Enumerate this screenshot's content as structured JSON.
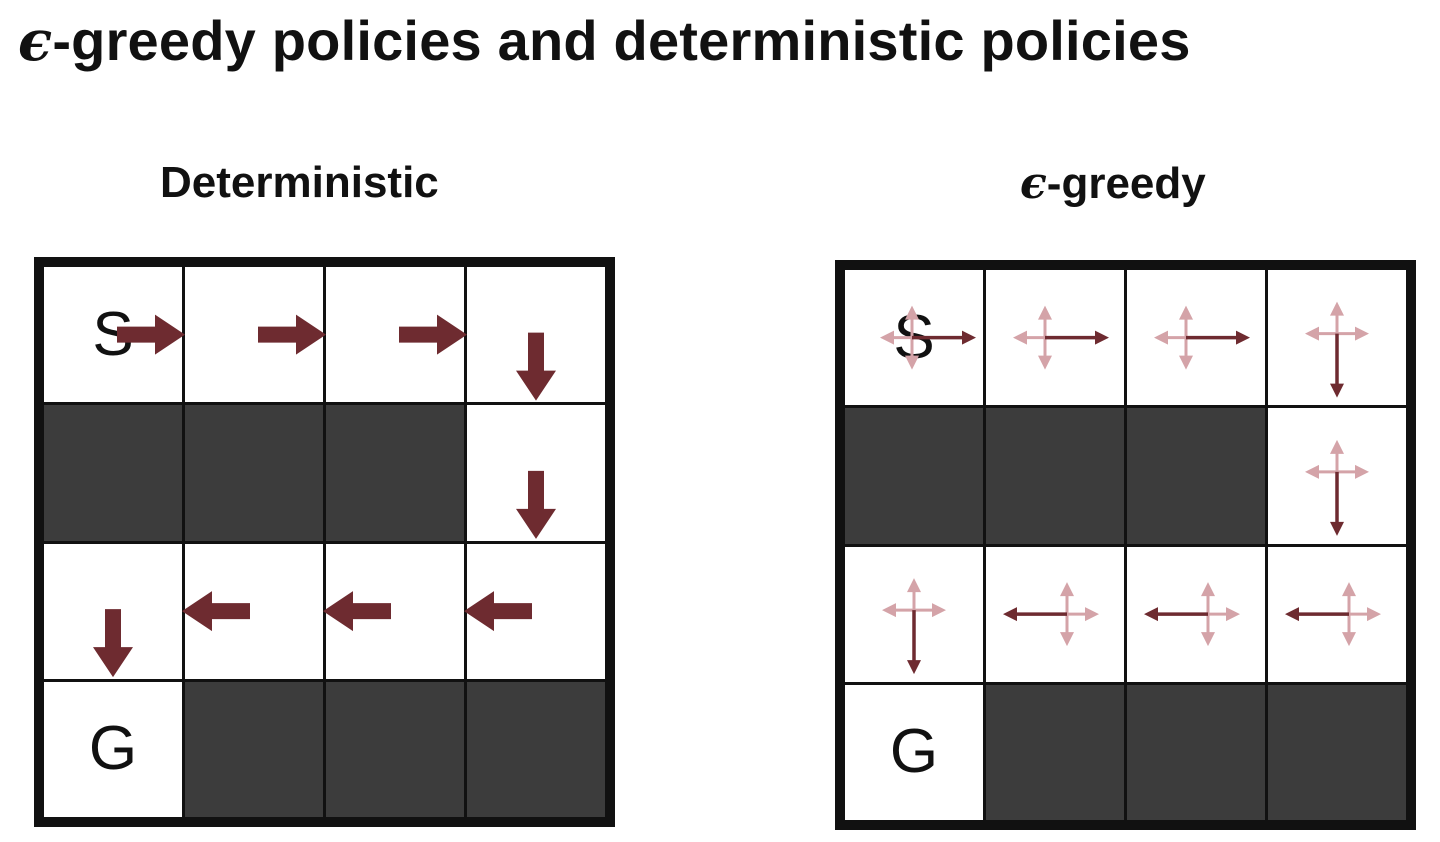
{
  "title": {
    "epsilon": "ϵ",
    "text": "-greedy policies and deterministic policies"
  },
  "panels": {
    "deterministic": {
      "label": "Deterministic",
      "cells": [
        {
          "row": 0,
          "col": 0,
          "type": "open",
          "letter": "S",
          "action": "right"
        },
        {
          "row": 0,
          "col": 1,
          "type": "open",
          "letter": "",
          "action": "right"
        },
        {
          "row": 0,
          "col": 2,
          "type": "open",
          "letter": "",
          "action": "right"
        },
        {
          "row": 0,
          "col": 3,
          "type": "open",
          "letter": "",
          "action": "down"
        },
        {
          "row": 1,
          "col": 0,
          "type": "wall"
        },
        {
          "row": 1,
          "col": 1,
          "type": "wall"
        },
        {
          "row": 1,
          "col": 2,
          "type": "wall"
        },
        {
          "row": 1,
          "col": 3,
          "type": "open",
          "letter": "",
          "action": "down"
        },
        {
          "row": 2,
          "col": 0,
          "type": "open",
          "letter": "",
          "action": "down"
        },
        {
          "row": 2,
          "col": 1,
          "type": "open",
          "letter": "",
          "action": "left"
        },
        {
          "row": 2,
          "col": 2,
          "type": "open",
          "letter": "",
          "action": "left"
        },
        {
          "row": 2,
          "col": 3,
          "type": "open",
          "letter": "",
          "action": "left"
        },
        {
          "row": 3,
          "col": 0,
          "type": "open",
          "letter": "G",
          "action": ""
        },
        {
          "row": 3,
          "col": 1,
          "type": "wall"
        },
        {
          "row": 3,
          "col": 2,
          "type": "wall"
        },
        {
          "row": 3,
          "col": 3,
          "type": "wall"
        }
      ]
    },
    "epsilon_greedy": {
      "epsilon": "ϵ",
      "label": "-greedy",
      "cells": [
        {
          "row": 0,
          "col": 0,
          "type": "open",
          "letter": "S",
          "action": "right"
        },
        {
          "row": 0,
          "col": 1,
          "type": "open",
          "letter": "",
          "action": "right"
        },
        {
          "row": 0,
          "col": 2,
          "type": "open",
          "letter": "",
          "action": "right"
        },
        {
          "row": 0,
          "col": 3,
          "type": "open",
          "letter": "",
          "action": "down"
        },
        {
          "row": 1,
          "col": 0,
          "type": "wall"
        },
        {
          "row": 1,
          "col": 1,
          "type": "wall"
        },
        {
          "row": 1,
          "col": 2,
          "type": "wall"
        },
        {
          "row": 1,
          "col": 3,
          "type": "open",
          "letter": "",
          "action": "down"
        },
        {
          "row": 2,
          "col": 0,
          "type": "open",
          "letter": "",
          "action": "down"
        },
        {
          "row": 2,
          "col": 1,
          "type": "open",
          "letter": "",
          "action": "left"
        },
        {
          "row": 2,
          "col": 2,
          "type": "open",
          "letter": "",
          "action": "left"
        },
        {
          "row": 2,
          "col": 3,
          "type": "open",
          "letter": "",
          "action": "left"
        },
        {
          "row": 3,
          "col": 0,
          "type": "open",
          "letter": "G",
          "action": ""
        },
        {
          "row": 3,
          "col": 1,
          "type": "wall"
        },
        {
          "row": 3,
          "col": 2,
          "type": "wall"
        },
        {
          "row": 3,
          "col": 3,
          "type": "wall"
        }
      ]
    }
  },
  "colors": {
    "arrow_dark": "#6e2b30",
    "arrow_light": "#d4a3a8",
    "wall": "#3c3c3c",
    "border": "#111111"
  }
}
